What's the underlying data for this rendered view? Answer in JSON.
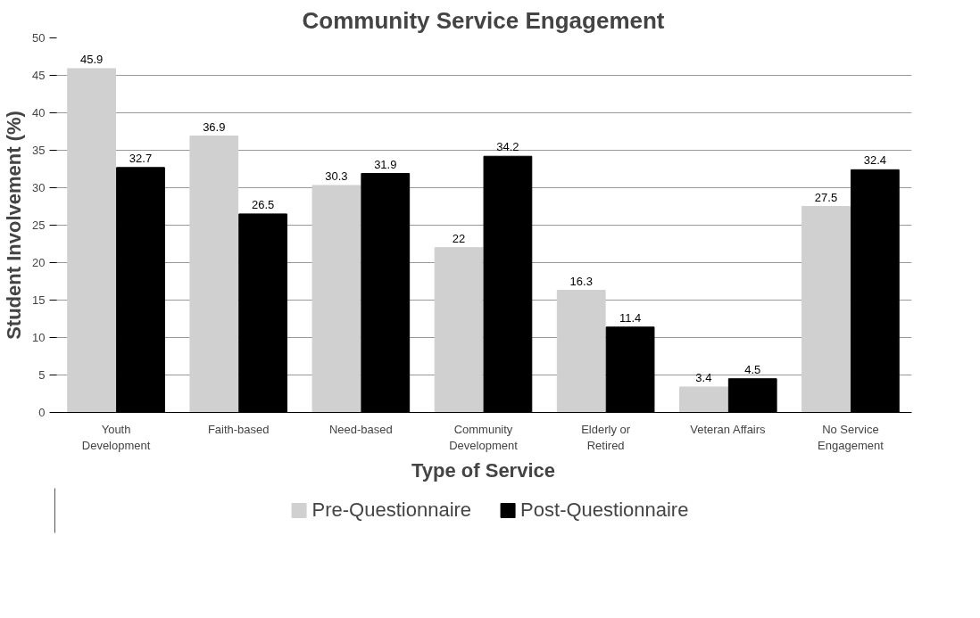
{
  "chart_data": {
    "type": "bar",
    "title": "Community Service Engagement",
    "xlabel": "Type of Service",
    "ylabel": "Student Involvement (%)",
    "categories": [
      "Youth\nDevelopment",
      "Faith-based",
      "Need-based",
      "Community\nDevelopment",
      "Elderly or\nRetired",
      "Veteran Affairs",
      "No Service\nEngagement"
    ],
    "series": [
      {
        "name": "Pre-Questionnaire",
        "color": "#d0d0d0",
        "values": [
          45.9,
          36.9,
          30.3,
          22,
          16.3,
          3.4,
          27.5
        ]
      },
      {
        "name": "Post-Questionnaire",
        "color": "#000000",
        "values": [
          32.7,
          26.5,
          31.9,
          34.2,
          11.4,
          4.5,
          32.4
        ]
      }
    ],
    "ylim": [
      0,
      50
    ],
    "yticks": [
      0,
      5,
      10,
      15,
      20,
      25,
      30,
      35,
      40,
      45,
      50
    ],
    "grid": "y",
    "legend": "bottom",
    "data_labels": true
  }
}
